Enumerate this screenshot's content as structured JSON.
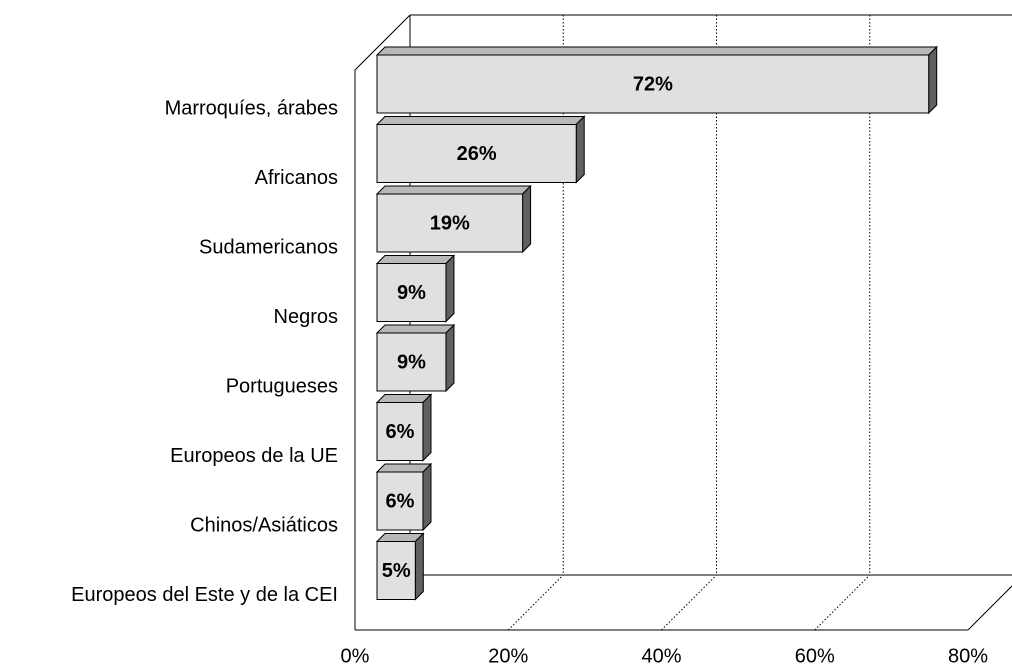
{
  "chart_data": {
    "type": "bar",
    "orientation": "horizontal",
    "three_d": true,
    "categories": [
      "Marroquíes, árabes",
      "Africanos",
      "Sudamericanos",
      "Negros",
      "Portugueses",
      "Europeos de la UE",
      "Chinos/Asiáticos",
      "Europeos del Este y de la CEI"
    ],
    "values": [
      72,
      26,
      19,
      9,
      9,
      6,
      6,
      5
    ],
    "value_labels": [
      "72%",
      "26%",
      "19%",
      "9%",
      "9%",
      "6%",
      "6%",
      "5%"
    ],
    "color": "#e0e0e0",
    "xlim": [
      0,
      80
    ],
    "xticks": [
      {
        "value": 0,
        "label": "0%"
      },
      {
        "value": 20,
        "label": "20%"
      },
      {
        "value": 40,
        "label": "40%"
      },
      {
        "value": 60,
        "label": "60%"
      },
      {
        "value": 80,
        "label": "80%"
      }
    ],
    "grid": true
  }
}
